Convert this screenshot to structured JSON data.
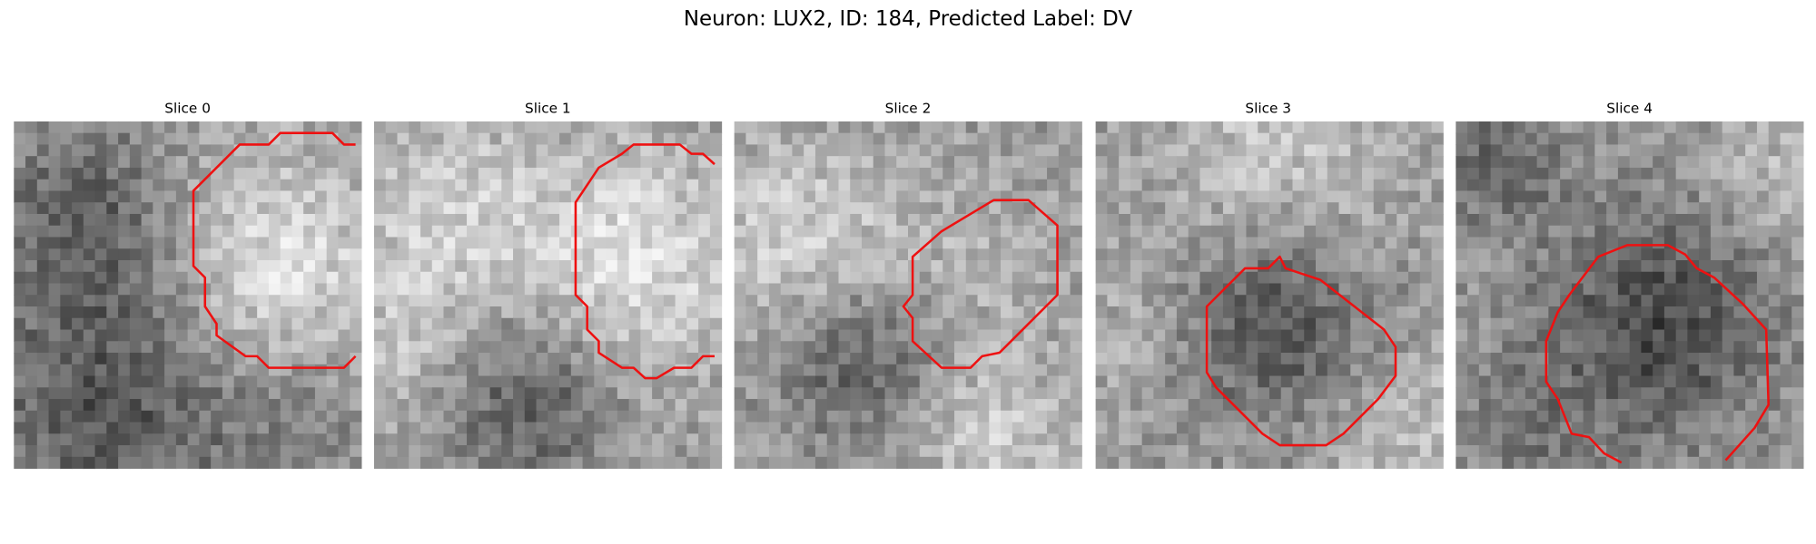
{
  "title": "Neuron: LUX2, ID: 184, Predicted Label: DV",
  "panels": [
    {
      "title": "Slice 0"
    },
    {
      "title": "Slice 1"
    },
    {
      "title": "Slice 2"
    },
    {
      "title": "Slice 3"
    },
    {
      "title": "Slice 4"
    }
  ]
}
